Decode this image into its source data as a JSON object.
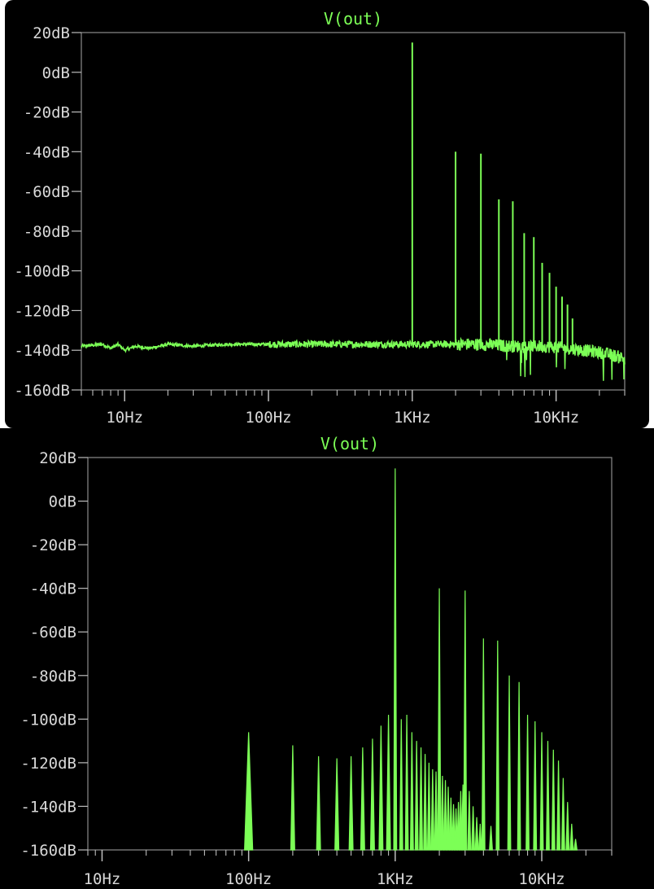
{
  "chart_data": [
    {
      "type": "line",
      "title": "V(out)",
      "xlabel": "",
      "ylabel": "",
      "xscale": "log",
      "xlim": [
        5,
        30000
      ],
      "ylim": [
        -160,
        20
      ],
      "yticks": [
        20,
        0,
        -20,
        -40,
        -60,
        -80,
        -100,
        -120,
        -140,
        -160
      ],
      "ytick_labels": [
        "20dB",
        "0dB",
        "-20dB",
        "-40dB",
        "-60dB",
        "-80dB",
        "-100dB",
        "-120dB",
        "-140dB",
        "-160dB"
      ],
      "xticks": [
        10,
        100,
        1000,
        10000
      ],
      "xtick_labels": [
        "10Hz",
        "100Hz",
        "1KHz",
        "10KHz"
      ],
      "grid": false,
      "line_color": "#7cff56",
      "background": "#000000",
      "noise_floor": {
        "x": [
          5,
          7,
          8,
          9,
          10,
          12,
          15,
          20,
          30,
          50,
          100,
          200,
          500,
          1000,
          2000,
          3000,
          5000,
          8000,
          12000,
          20000,
          30000
        ],
        "y": [
          -138,
          -137,
          -139,
          -137,
          -140,
          -138,
          -139,
          -137,
          -138,
          -137,
          -137,
          -137,
          -137,
          -137,
          -137,
          -137,
          -138,
          -138,
          -139,
          -141,
          -144
        ]
      },
      "series": [
        {
          "x": [
            1000,
            2000,
            3000,
            4000,
            5000,
            6000,
            7000,
            8000,
            9000,
            10000,
            11000,
            12000,
            13000
          ],
          "y": [
            15,
            -40,
            -41,
            -64,
            -65,
            -81,
            -83,
            -96,
            -101,
            -108,
            -113,
            -117,
            -124
          ]
        }
      ]
    },
    {
      "type": "line",
      "title": "V(out)",
      "xlabel": "",
      "ylabel": "",
      "xscale": "log",
      "xlim": [
        8,
        30000
      ],
      "ylim": [
        -160,
        20
      ],
      "yticks": [
        20,
        0,
        -20,
        -40,
        -60,
        -80,
        -100,
        -120,
        -140,
        -160
      ],
      "ytick_labels": [
        "20dB",
        "0dB",
        "-20dB",
        "-40dB",
        "-60dB",
        "-80dB",
        "-100dB",
        "-120dB",
        "-140dB",
        "-160dB"
      ],
      "xticks": [
        10,
        100,
        1000,
        10000
      ],
      "xtick_labels": [
        "10Hz",
        "100Hz",
        "1KHz",
        "10KHz"
      ],
      "grid": false,
      "line_color": "#7cff56",
      "background": "#000000",
      "series": [
        {
          "x": [
            100,
            200,
            300,
            400,
            500,
            600,
            700,
            800,
            900,
            1000,
            1100,
            1200,
            1300,
            1400,
            1500,
            1600,
            1700,
            1800,
            1900,
            2000,
            2100,
            2200,
            2300,
            2400,
            2500,
            2600,
            2700,
            2800,
            2900,
            3000,
            3200,
            3400,
            3600,
            3800,
            4000,
            4500,
            5000,
            6000,
            7000,
            8000,
            9000,
            10000,
            11000,
            12000,
            13000,
            14000,
            15000,
            16000,
            17000
          ],
          "y": [
            -106,
            -112,
            -117,
            -118,
            -117,
            -113,
            -109,
            -103,
            -98,
            15,
            -100,
            -98,
            -106,
            -110,
            -113,
            -116,
            -120,
            -123,
            -124,
            -40,
            -126,
            -128,
            -131,
            -136,
            -139,
            -141,
            -138,
            -133,
            -130,
            -41,
            -133,
            -140,
            -145,
            -148,
            -63,
            -149,
            -64,
            -80,
            -83,
            -98,
            -101,
            -106,
            -110,
            -114,
            -119,
            -127,
            -138,
            -148,
            -155
          ]
        }
      ]
    }
  ]
}
